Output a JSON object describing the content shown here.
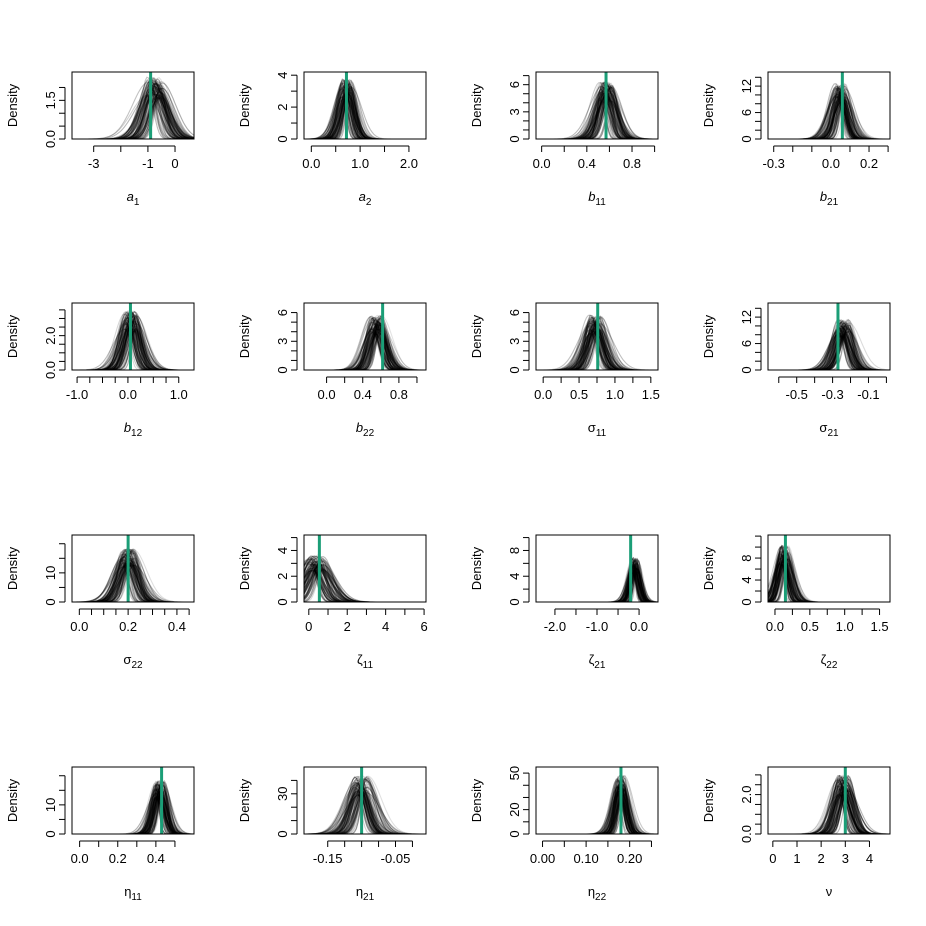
{
  "colors": {
    "density_curves": "#000000",
    "true_value_line": "#1b9e77",
    "axes": "#000000"
  },
  "ylabel": "Density",
  "chart_data": [
    {
      "type": "line",
      "xlabel": "a",
      "xsub": "1",
      "xlabel_style": "italic",
      "xlim": [
        -3.8,
        0.7
      ],
      "ylim": [
        0,
        2.6
      ],
      "xticks": [
        -3,
        -2,
        -1,
        0
      ],
      "xtick_labels": [
        "-3",
        "",
        "-1",
        "0"
      ],
      "yticks": [
        0,
        0.5,
        1,
        1.5,
        2
      ],
      "ytick_labels": [
        "0.0",
        "",
        "",
        "1.5",
        ""
      ],
      "true_value": -0.9,
      "approx_mode": -0.75,
      "approx_sd": 0.35,
      "approx_peak": 2.1,
      "n_curves": 100
    },
    {
      "type": "line",
      "xlabel": "a",
      "xsub": "2",
      "xlabel_style": "italic",
      "xlim": [
        -0.15,
        2.35
      ],
      "ylim": [
        0,
        4.2
      ],
      "xticks": [
        0,
        0.5,
        1,
        1.5,
        2
      ],
      "xtick_labels": [
        "0.0",
        "",
        "1.0",
        "",
        "2.0"
      ],
      "yticks": [
        0,
        1,
        2,
        3,
        4
      ],
      "ytick_labels": [
        "0",
        "",
        "2",
        "",
        "4"
      ],
      "true_value": 0.72,
      "approx_mode": 0.72,
      "approx_sd": 0.13,
      "approx_peak": 3.3,
      "n_curves": 100
    },
    {
      "type": "line",
      "xlabel": "b",
      "xsub": "11",
      "xlabel_style": "italic",
      "xlim": [
        -0.05,
        1.03
      ],
      "ylim": [
        0,
        7.4
      ],
      "xticks": [
        0,
        0.2,
        0.4,
        0.6,
        0.8,
        1.0
      ],
      "xtick_labels": [
        "0.0",
        "",
        "0.4",
        "",
        "0.8",
        ""
      ],
      "yticks": [
        0,
        1,
        2,
        3,
        4,
        5,
        6,
        7
      ],
      "ytick_labels": [
        "0",
        "",
        "",
        "3",
        "",
        "",
        "6",
        ""
      ],
      "true_value": 0.57,
      "approx_mode": 0.57,
      "approx_sd": 0.07,
      "approx_peak": 5.5,
      "n_curves": 100
    },
    {
      "type": "line",
      "xlabel": "b",
      "xsub": "21",
      "xlabel_style": "italic",
      "xlim": [
        -0.33,
        0.31
      ],
      "ylim": [
        0,
        15.2
      ],
      "xticks": [
        -0.3,
        -0.2,
        -0.1,
        0,
        0.1,
        0.2,
        0.3
      ],
      "xtick_labels": [
        "-0.3",
        "",
        "",
        "0.0",
        "",
        "0.2",
        ""
      ],
      "yticks": [
        0,
        2,
        4,
        6,
        8,
        10,
        12,
        14
      ],
      "ytick_labels": [
        "0",
        "",
        "",
        "6",
        "",
        "",
        "12",
        ""
      ],
      "true_value": 0.06,
      "approx_mode": 0.05,
      "approx_sd": 0.035,
      "approx_peak": 11,
      "n_curves": 100
    },
    {
      "type": "line",
      "xlabel": "b",
      "xsub": "12",
      "xlabel_style": "italic",
      "xlim": [
        -1.1,
        1.3
      ],
      "ylim": [
        0,
        3.9
      ],
      "xticks": [
        -1,
        -0.75,
        -0.5,
        -0.25,
        0,
        0.25,
        0.5,
        0.75,
        1
      ],
      "xtick_labels": [
        "-1.0",
        "",
        "",
        "",
        "0.0",
        "",
        "",
        "",
        "1.0"
      ],
      "yticks": [
        0,
        0.5,
        1,
        1.5,
        2,
        2.5,
        3,
        3.5
      ],
      "ytick_labels": [
        "0.0",
        "",
        "",
        "",
        "2.0",
        "",
        "",
        ""
      ],
      "true_value": 0.05,
      "approx_mode": 0.05,
      "approx_sd": 0.15,
      "approx_peak": 3.0,
      "n_curves": 100
    },
    {
      "type": "line",
      "xlabel": "b",
      "xsub": "22",
      "xlabel_style": "italic",
      "xlim": [
        -0.25,
        1.1
      ],
      "ylim": [
        0,
        7.0
      ],
      "xticks": [
        0,
        0.2,
        0.4,
        0.6,
        0.8,
        1.0
      ],
      "xtick_labels": [
        "0.0",
        "",
        "0.4",
        "",
        "0.8",
        ""
      ],
      "yticks": [
        0,
        1,
        2,
        3,
        4,
        5,
        6
      ],
      "ytick_labels": [
        "0",
        "",
        "",
        "3",
        "",
        "",
        "6"
      ],
      "true_value": 0.62,
      "approx_mode": 0.55,
      "approx_sd": 0.08,
      "approx_peak": 5.0,
      "n_curves": 100
    },
    {
      "type": "line",
      "xlabel": "σ",
      "xsub": "11",
      "xlabel_style": "normal",
      "xlim": [
        -0.1,
        1.6
      ],
      "ylim": [
        0,
        7.0
      ],
      "xticks": [
        0,
        0.25,
        0.5,
        0.75,
        1,
        1.25,
        1.5
      ],
      "xtick_labels": [
        "0.0",
        "",
        "0.5",
        "",
        "1.0",
        "",
        "1.5"
      ],
      "yticks": [
        0,
        1,
        2,
        3,
        4,
        5,
        6
      ],
      "ytick_labels": [
        "0",
        "",
        "",
        "3",
        "",
        "",
        "6"
      ],
      "true_value": 0.76,
      "approx_mode": 0.72,
      "approx_sd": 0.11,
      "approx_peak": 5.0,
      "n_curves": 100
    },
    {
      "type": "line",
      "xlabel": "σ",
      "xsub": "21",
      "xlabel_style": "normal",
      "xlim": [
        -0.66,
        0.02
      ],
      "ylim": [
        0,
        15.2
      ],
      "xticks": [
        -0.6,
        -0.5,
        -0.4,
        -0.3,
        -0.2,
        -0.1,
        0
      ],
      "xtick_labels": [
        "",
        "-0.5",
        "",
        "-0.3",
        "",
        "-0.1",
        ""
      ],
      "yticks": [
        0,
        2,
        4,
        6,
        8,
        10,
        12,
        14
      ],
      "ytick_labels": [
        "0",
        "",
        "",
        "6",
        "",
        "",
        "12",
        ""
      ],
      "true_value": -0.27,
      "approx_mode": -0.24,
      "approx_sd": 0.04,
      "approx_peak": 10,
      "n_curves": 100
    },
    {
      "type": "line",
      "xlabel": "σ",
      "xsub": "22",
      "xlabel_style": "normal",
      "xlim": [
        -0.03,
        0.47
      ],
      "ylim": [
        0,
        23
      ],
      "xticks": [
        0,
        0.05,
        0.1,
        0.15,
        0.2,
        0.25,
        0.3,
        0.35,
        0.4,
        0.45
      ],
      "xtick_labels": [
        "0.0",
        "",
        "",
        "",
        "0.2",
        "",
        "",
        "",
        "0.4",
        ""
      ],
      "yticks": [
        0,
        5,
        10,
        15,
        20
      ],
      "ytick_labels": [
        "0",
        "",
        "10",
        "",
        ""
      ],
      "true_value": 0.2,
      "approx_mode": 0.2,
      "approx_sd": 0.035,
      "approx_peak": 16,
      "n_curves": 100
    },
    {
      "type": "line",
      "xlabel": "ζ",
      "xsub": "11",
      "xlabel_style": "normal",
      "xlim": [
        -0.25,
        6.1
      ],
      "ylim": [
        0,
        5.2
      ],
      "xticks": [
        0,
        1,
        2,
        3,
        4,
        5,
        6
      ],
      "xtick_labels": [
        "0",
        "",
        "2",
        "",
        "4",
        "",
        "6"
      ],
      "yticks": [
        0,
        1,
        2,
        3,
        4,
        5
      ],
      "ytick_labels": [
        "0",
        "",
        "2",
        "",
        "4",
        ""
      ],
      "true_value": 0.55,
      "approx_mode": 0.35,
      "approx_sd": 0.5,
      "approx_peak": 3.2,
      "n_curves": 100
    },
    {
      "type": "line",
      "xlabel": "ζ",
      "xsub": "21",
      "xlabel_style": "normal",
      "xlim": [
        -2.45,
        0.45
      ],
      "ylim": [
        0,
        10.4
      ],
      "xticks": [
        -2,
        -1.5,
        -1,
        -0.5,
        0
      ],
      "xtick_labels": [
        "-2.0",
        "",
        "-1.0",
        "",
        "0.0"
      ],
      "yticks": [
        0,
        2,
        4,
        6,
        8,
        10
      ],
      "ytick_labels": [
        "0",
        "",
        "4",
        "",
        "8",
        ""
      ],
      "true_value": -0.2,
      "approx_mode": -0.1,
      "approx_sd": 0.1,
      "approx_peak": 6,
      "n_curves": 100
    },
    {
      "type": "line",
      "xlabel": "ζ",
      "xsub": "22",
      "xlabel_style": "normal",
      "xlim": [
        -0.1,
        1.65
      ],
      "ylim": [
        0,
        12.2
      ],
      "xticks": [
        0,
        0.25,
        0.5,
        0.75,
        1,
        1.25,
        1.5
      ],
      "xtick_labels": [
        "0.0",
        "",
        "0.5",
        "",
        "1.0",
        "",
        "1.5"
      ],
      "yticks": [
        0,
        2,
        4,
        6,
        8,
        10,
        12
      ],
      "ytick_labels": [
        "0",
        "",
        "4",
        "",
        "8",
        "",
        ""
      ],
      "true_value": 0.15,
      "approx_mode": 0.13,
      "approx_sd": 0.08,
      "approx_peak": 9,
      "n_curves": 100
    },
    {
      "type": "line",
      "xlabel": "η",
      "xsub": "11",
      "xlabel_style": "normal",
      "xlim": [
        -0.04,
        0.6
      ],
      "ylim": [
        0,
        23
      ],
      "xticks": [
        0,
        0.1,
        0.2,
        0.3,
        0.4,
        0.5
      ],
      "xtick_labels": [
        "0.0",
        "",
        "0.2",
        "",
        "0.4",
        ""
      ],
      "yticks": [
        0,
        5,
        10,
        15,
        20
      ],
      "ytick_labels": [
        "0",
        "",
        "10",
        "",
        ""
      ],
      "true_value": 0.43,
      "approx_mode": 0.42,
      "approx_sd": 0.03,
      "approx_peak": 16,
      "n_curves": 100
    },
    {
      "type": "line",
      "xlabel": "η",
      "xsub": "21",
      "xlabel_style": "normal",
      "xlim": [
        -0.185,
        -0.005
      ],
      "ylim": [
        0,
        50
      ],
      "xticks": [
        -0.15,
        -0.125,
        -0.1,
        -0.075,
        -0.05,
        -0.025
      ],
      "xtick_labels": [
        "-0.15",
        "",
        "",
        "",
        "-0.05",
        ""
      ],
      "yticks": [
        0,
        10,
        20,
        30,
        40
      ],
      "ytick_labels": [
        "0",
        "",
        "",
        "30",
        ""
      ],
      "true_value": -0.1,
      "approx_mode": -0.1,
      "approx_sd": 0.013,
      "approx_peak": 38,
      "n_curves": 100
    },
    {
      "type": "line",
      "xlabel": "η",
      "xsub": "22",
      "xlabel_style": "normal",
      "xlim": [
        -0.015,
        0.265
      ],
      "ylim": [
        0,
        55
      ],
      "xticks": [
        0,
        0.05,
        0.1,
        0.15,
        0.2,
        0.25
      ],
      "xtick_labels": [
        "0.00",
        "",
        "0.10",
        "",
        "0.20",
        ""
      ],
      "yticks": [
        0,
        10,
        20,
        30,
        40,
        50
      ],
      "ytick_labels": [
        "0",
        "",
        "20",
        "",
        "",
        "50"
      ],
      "true_value": 0.18,
      "approx_mode": 0.18,
      "approx_sd": 0.012,
      "approx_peak": 42,
      "n_curves": 100
    },
    {
      "type": "line",
      "xlabel": "ν",
      "xsub": "",
      "xlabel_style": "normal",
      "xlim": [
        -0.2,
        4.85
      ],
      "ylim": [
        0,
        3.4
      ],
      "xticks": [
        0,
        1,
        2,
        3,
        4
      ],
      "xtick_labels": [
        "0",
        "1",
        "2",
        "3",
        "4"
      ],
      "yticks": [
        0,
        0.5,
        1,
        1.5,
        2,
        2.5,
        3
      ],
      "ytick_labels": [
        "0.0",
        "",
        "",
        "",
        "2.0",
        "",
        ""
      ],
      "true_value": 3.0,
      "approx_mode": 2.9,
      "approx_sd": 0.3,
      "approx_peak": 2.6,
      "n_curves": 100
    }
  ]
}
